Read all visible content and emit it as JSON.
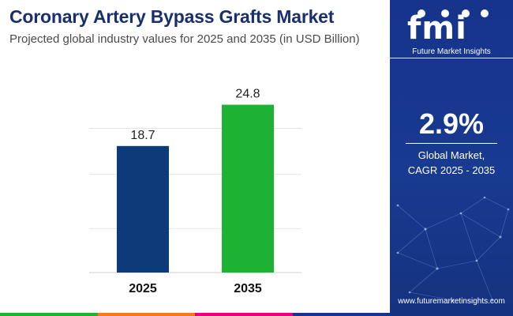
{
  "header": {
    "title": "Coronary Artery Bypass Grafts Market",
    "subtitle": "Projected global industry values for 2025 and 2035 (in USD Billion)"
  },
  "chart_data": {
    "type": "bar",
    "categories": [
      "2025",
      "2035"
    ],
    "values": [
      18.7,
      24.8
    ],
    "bar_colors": [
      "#0d3a78",
      "#1db233"
    ],
    "title": "Coronary Artery Bypass Grafts Market",
    "subtitle": "Projected global industry values for 2025 and 2035 (in USD Billion)",
    "xlabel": "",
    "ylabel": "",
    "ylim": [
      0,
      26.5
    ],
    "grid": true,
    "legend": "none"
  },
  "panel": {
    "logo_text": "fmi",
    "brand": "Future Market Insights",
    "cagr_value": "2.9%",
    "cagr_label_line1": "Global Market,",
    "cagr_label_line2": "CAGR 2025 - 2035",
    "url": "www.futuremarketinsights.com"
  },
  "colors": {
    "title": "#1a2f6e",
    "panel": "#16348c",
    "bar_2025": "#0d3a78",
    "bar_2035": "#1db233",
    "bottom_bar": [
      "#1db233",
      "#f47a20",
      "#e6007e",
      "#16348c"
    ]
  }
}
